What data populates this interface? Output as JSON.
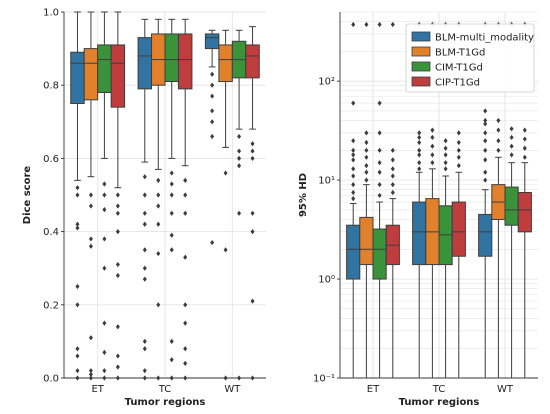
{
  "colors": {
    "BLM-multi_modality": "#3274a1",
    "BLM-T1Gd": "#e1812c",
    "CIM-T1Gd": "#3a923a",
    "CIP-T1Gd": "#c03d3e",
    "grid": "#e4e4e4",
    "box_edge": "#3d3d3d"
  },
  "chart_data": [
    {
      "type": "box",
      "ylabel": "Dice score",
      "xlabel": "Tumor regions",
      "scale": "linear",
      "ylim": [
        0,
        1.0
      ],
      "yticks": [
        "0.0",
        "0.2",
        "0.4",
        "0.6",
        "0.8",
        "1.0"
      ],
      "grid": true,
      "categories": [
        "ET",
        "TC",
        "WT"
      ],
      "series": [
        {
          "name": "BLM-multi_modality",
          "stats": [
            {
              "lo": 0.54,
              "q1": 0.75,
              "med": 0.86,
              "q3": 0.89,
              "hi": 1.0,
              "fliers": [
                0.0,
                0.02,
                0.06,
                0.08,
                0.2,
                0.25,
                0.41,
                0.42,
                0.5,
                0.52
              ]
            },
            {
              "lo": 0.59,
              "q1": 0.79,
              "med": 0.88,
              "q3": 0.93,
              "hi": 0.98,
              "fliers": [
                0.0,
                0.02,
                0.08,
                0.1,
                0.27,
                0.3,
                0.35,
                0.42,
                0.45,
                0.5,
                0.55
              ]
            },
            {
              "lo": 0.85,
              "q1": 0.9,
              "med": 0.93,
              "q3": 0.94,
              "hi": 0.95,
              "fliers": [
                0.37,
                0.66,
                0.7,
                0.73,
                0.77,
                0.8,
                0.83
              ]
            }
          ]
        },
        {
          "name": "BLM-T1Gd",
          "stats": [
            {
              "lo": 0.55,
              "q1": 0.76,
              "med": 0.86,
              "q3": 0.9,
              "hi": 1.0,
              "fliers": [
                0.0,
                0.01,
                0.02,
                0.11,
                0.36,
                0.38,
                0.47,
                0.5
              ]
            },
            {
              "lo": 0.57,
              "q1": 0.8,
              "med": 0.87,
              "q3": 0.94,
              "hi": 0.98,
              "fliers": [
                0.0,
                0.2,
                0.34,
                0.42,
                0.47,
                0.5,
                0.54
              ]
            },
            {
              "lo": 0.63,
              "q1": 0.81,
              "med": 0.87,
              "q3": 0.91,
              "hi": 0.95,
              "fliers": [
                0.0,
                0.35,
                0.56
              ]
            }
          ]
        },
        {
          "name": "CIM-T1Gd",
          "stats": [
            {
              "lo": 0.6,
              "q1": 0.78,
              "med": 0.87,
              "q3": 0.91,
              "hi": 1.0,
              "fliers": [
                0.0,
                0.02,
                0.07,
                0.15,
                0.3,
                0.38,
                0.46,
                0.5,
                0.53
              ]
            },
            {
              "lo": 0.6,
              "q1": 0.81,
              "med": 0.87,
              "q3": 0.94,
              "hi": 0.98,
              "fliers": [
                0.0,
                0.05,
                0.1,
                0.35,
                0.39,
                0.45,
                0.5,
                0.53,
                0.56
              ]
            },
            {
              "lo": 0.68,
              "q1": 0.82,
              "med": 0.87,
              "q3": 0.92,
              "hi": 0.95,
              "fliers": [
                0.0,
                0.45,
                0.58,
                0.6,
                0.62,
                0.66
              ]
            }
          ]
        },
        {
          "name": "CIP-T1Gd",
          "stats": [
            {
              "lo": 0.52,
              "q1": 0.74,
              "med": 0.86,
              "q3": 0.91,
              "hi": 1.0,
              "fliers": [
                0.0,
                0.03,
                0.06,
                0.14,
                0.28,
                0.31,
                0.4,
                0.45,
                0.47,
                0.5
              ]
            },
            {
              "lo": 0.58,
              "q1": 0.79,
              "med": 0.87,
              "q3": 0.94,
              "hi": 0.98,
              "fliers": [
                0.0,
                0.04,
                0.08,
                0.15,
                0.2,
                0.33,
                0.45,
                0.5,
                0.54
              ]
            },
            {
              "lo": 0.68,
              "q1": 0.82,
              "med": 0.88,
              "q3": 0.91,
              "hi": 0.96,
              "fliers": [
                0.0,
                0.21,
                0.4,
                0.45,
                0.6,
                0.62,
                0.64
              ]
            }
          ]
        }
      ]
    },
    {
      "type": "box",
      "ylabel": "95% HD",
      "xlabel": "Tumor regions",
      "scale": "log",
      "ylim": [
        0.1,
        500
      ],
      "yticks": [
        "10⁻¹",
        "10⁰",
        "10¹",
        "10²"
      ],
      "grid": true,
      "legend_position": "top-right",
      "categories": [
        "ET",
        "TC",
        "WT"
      ],
      "series": [
        {
          "name": "BLM-multi_modality",
          "stats": [
            {
              "lo": 0.1,
              "q1": 1.0,
              "med": 2.0,
              "q3": 3.5,
              "hi": 5.8,
              "fliers": [
                6.5,
                7.5,
                9.0,
                11,
                13,
                16,
                18,
                20,
                25,
                60,
                374
              ]
            },
            {
              "lo": 0.1,
              "q1": 1.4,
              "med": 3.0,
              "q3": 6.0,
              "hi": 12,
              "fliers": [
                13,
                15,
                18,
                20,
                24,
                27,
                30,
                374
              ]
            },
            {
              "lo": 0.1,
              "q1": 1.7,
              "med": 3.0,
              "q3": 4.5,
              "hi": 8,
              "fliers": [
                10,
                12,
                16,
                20,
                25,
                30,
                37,
                40,
                50,
                374
              ]
            }
          ]
        },
        {
          "name": "BLM-T1Gd",
          "stats": [
            {
              "lo": 0.1,
              "q1": 1.4,
              "med": 2.0,
              "q3": 4.2,
              "hi": 9,
              "fliers": [
                10,
                12,
                14,
                17,
                20,
                24,
                30,
                374
              ]
            },
            {
              "lo": 0.1,
              "q1": 1.4,
              "med": 3.0,
              "q3": 6.5,
              "hi": 13,
              "fliers": [
                15,
                18,
                22,
                27,
                32,
                374
              ]
            },
            {
              "lo": 0.1,
              "q1": 4.0,
              "med": 6.0,
              "q3": 9.0,
              "hi": 17,
              "fliers": [
                20,
                25,
                32,
                40,
                374
              ]
            }
          ]
        },
        {
          "name": "CIM-T1Gd",
          "stats": [
            {
              "lo": 0.1,
              "q1": 1.0,
              "med": 2.0,
              "q3": 3.2,
              "hi": 6,
              "fliers": [
                7,
                9,
                12,
                15,
                20,
                30,
                60,
                374
              ]
            },
            {
              "lo": 0.1,
              "q1": 1.4,
              "med": 2.8,
              "q3": 5.5,
              "hi": 11,
              "fliers": [
                13,
                15,
                18,
                21,
                25,
                374
              ]
            },
            {
              "lo": 0.1,
              "q1": 3.5,
              "med": 5.0,
              "q3": 8.5,
              "hi": 15,
              "fliers": [
                18,
                22,
                27,
                33,
                374
              ]
            }
          ]
        },
        {
          "name": "CIP-T1Gd",
          "stats": [
            {
              "lo": 0.1,
              "q1": 1.4,
              "med": 2.2,
              "q3": 3.5,
              "hi": 6.5,
              "fliers": [
                7.5,
                9,
                11,
                13,
                16,
                20,
                374
              ]
            },
            {
              "lo": 0.1,
              "q1": 1.7,
              "med": 3.0,
              "q3": 6.0,
              "hi": 12,
              "fliers": [
                14,
                17,
                20,
                24,
                30,
                374
              ]
            },
            {
              "lo": 0.1,
              "q1": 3.0,
              "med": 5.0,
              "q3": 7.5,
              "hi": 15,
              "fliers": [
                17,
                21,
                26,
                32,
                374
              ]
            }
          ]
        }
      ]
    }
  ]
}
